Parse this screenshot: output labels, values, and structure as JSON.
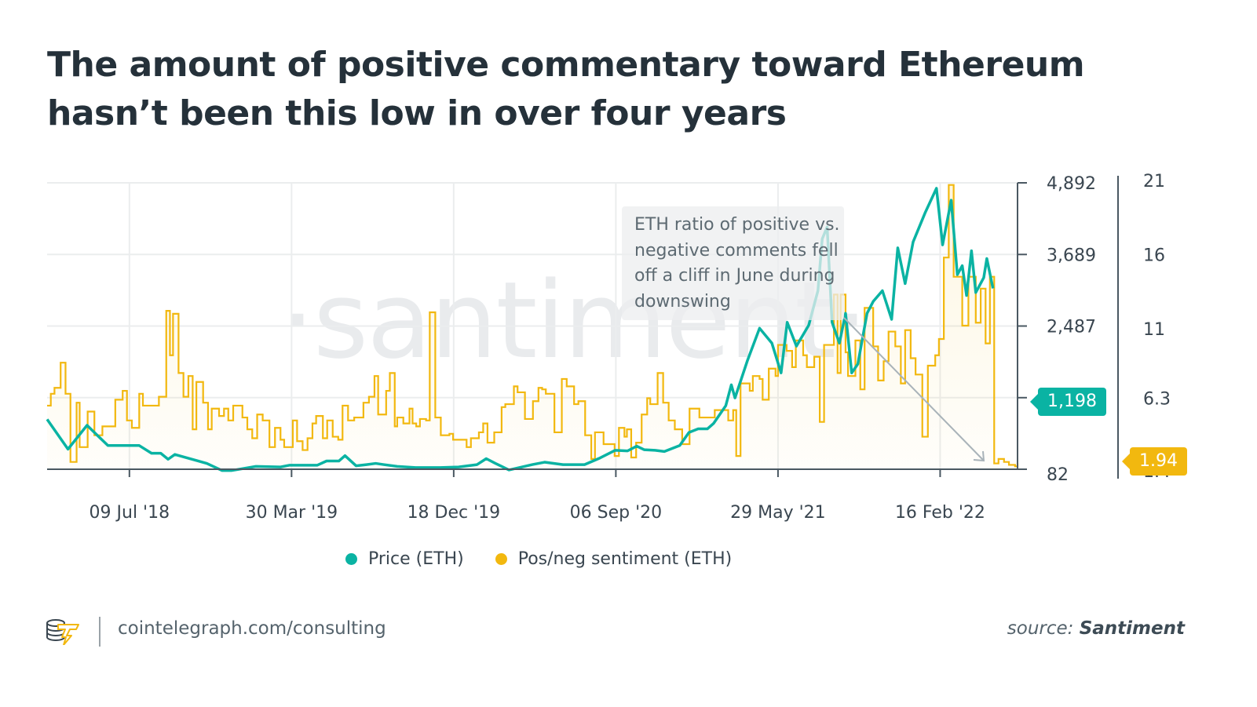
{
  "title": "The amount of positive commentary toward Ethereum hasn’t been this low in over four years",
  "watermark": "·santiment·",
  "annotation": "ETH ratio of positive vs. negative comments fell off a cliff in June during downswing",
  "footer": {
    "url": "cointelegraph.com/consulting",
    "source_label": "source:",
    "source_name": "Santiment"
  },
  "colors": {
    "price": "#0ab3a3",
    "sentiment": "#f2b80f",
    "axis": "#4a5862",
    "grid": "#ebedee",
    "text": "#3a4650"
  },
  "chart_data": {
    "type": "line",
    "title": "The amount of positive commentary toward Ethereum hasn’t been this low in over four years",
    "x_tick_labels": [
      "09 Jul '18",
      "30 Mar '19",
      "18 Dec '19",
      "06 Sep '20",
      "29 May '21",
      "16 Feb '22"
    ],
    "x_tick_days": [
      134,
      398,
      662,
      926,
      1190,
      1454
    ],
    "x_range_days": [
      0,
      1580
    ],
    "y_left": {
      "label": "Price (ETH)",
      "ticks": [
        "4,892",
        "3,689",
        "2,487",
        "82"
      ],
      "tick_values": [
        4892,
        3689,
        2487,
        1284,
        82
      ],
      "range": [
        82,
        4892
      ]
    },
    "y_right": {
      "label": "Pos/neg sentiment (ETH)",
      "ticks": [
        "21",
        "16",
        "11",
        "6.3",
        "1.4"
      ],
      "tick_values": [
        21,
        16,
        11,
        6.3,
        1.4
      ],
      "range": [
        1.4,
        21
      ]
    },
    "current_values": {
      "price": "1,198",
      "sentiment": "1.94"
    },
    "legend": [
      {
        "name": "Price (ETH)",
        "color": "#0ab3a3"
      },
      {
        "name": "Pos/neg sentiment (ETH)",
        "color": "#f2b80f"
      }
    ],
    "legend_position": "bottom",
    "grid": true,
    "series": [
      {
        "name": "Price (ETH)",
        "style": "line",
        "axis": "left",
        "points": [
          [
            0,
            920
          ],
          [
            34,
            420
          ],
          [
            65,
            820
          ],
          [
            99,
            480
          ],
          [
            150,
            480
          ],
          [
            170,
            350
          ],
          [
            185,
            350
          ],
          [
            197,
            250
          ],
          [
            208,
            330
          ],
          [
            260,
            180
          ],
          [
            285,
            60
          ],
          [
            300,
            60
          ],
          [
            340,
            130
          ],
          [
            380,
            120
          ],
          [
            395,
            150
          ],
          [
            440,
            150
          ],
          [
            455,
            220
          ],
          [
            475,
            220
          ],
          [
            485,
            310
          ],
          [
            503,
            140
          ],
          [
            520,
            160
          ],
          [
            535,
            180
          ],
          [
            548,
            160
          ],
          [
            570,
            130
          ],
          [
            600,
            110
          ],
          [
            640,
            110
          ],
          [
            670,
            120
          ],
          [
            700,
            160
          ],
          [
            715,
            260
          ],
          [
            730,
            180
          ],
          [
            752,
            70
          ],
          [
            790,
            160
          ],
          [
            810,
            200
          ],
          [
            840,
            160
          ],
          [
            875,
            160
          ],
          [
            900,
            270
          ],
          [
            925,
            400
          ],
          [
            945,
            390
          ],
          [
            960,
            470
          ],
          [
            972,
            410
          ],
          [
            990,
            400
          ],
          [
            1005,
            380
          ],
          [
            1030,
            480
          ],
          [
            1045,
            700
          ],
          [
            1060,
            760
          ],
          [
            1075,
            760
          ],
          [
            1085,
            850
          ],
          [
            1095,
            1000
          ],
          [
            1105,
            1150
          ],
          [
            1114,
            1500
          ],
          [
            1120,
            1280
          ],
          [
            1140,
            1900
          ],
          [
            1160,
            2450
          ],
          [
            1180,
            2200
          ],
          [
            1195,
            1700
          ],
          [
            1205,
            2550
          ],
          [
            1220,
            2150
          ],
          [
            1240,
            2500
          ],
          [
            1255,
            3080
          ],
          [
            1262,
            3950
          ],
          [
            1270,
            4150
          ],
          [
            1278,
            2550
          ],
          [
            1290,
            2200
          ],
          [
            1300,
            2700
          ],
          [
            1310,
            1700
          ],
          [
            1320,
            1850
          ],
          [
            1335,
            2700
          ],
          [
            1345,
            2900
          ],
          [
            1360,
            3080
          ],
          [
            1375,
            2600
          ],
          [
            1385,
            3800
          ],
          [
            1397,
            3200
          ],
          [
            1410,
            3900
          ],
          [
            1430,
            4400
          ],
          [
            1448,
            4800
          ],
          [
            1458,
            3850
          ],
          [
            1472,
            4600
          ],
          [
            1482,
            3350
          ],
          [
            1490,
            3500
          ],
          [
            1497,
            3000
          ],
          [
            1505,
            3750
          ],
          [
            1512,
            3050
          ],
          [
            1525,
            3300
          ],
          [
            1530,
            3620
          ],
          [
            1540,
            3120
          ]
        ]
      },
      {
        "name": "Pos/neg sentiment (ETH)",
        "style": "step",
        "axis": "right",
        "points": [
          [
            0,
            5.8
          ],
          [
            6,
            6.6
          ],
          [
            12,
            7.0
          ],
          [
            22,
            8.7
          ],
          [
            30,
            6.6
          ],
          [
            38,
            2.0
          ],
          [
            48,
            6.0
          ],
          [
            53,
            3.0
          ],
          [
            66,
            5.4
          ],
          [
            77,
            3.8
          ],
          [
            90,
            4.4
          ],
          [
            103,
            4.4
          ],
          [
            111,
            6.2
          ],
          [
            123,
            6.8
          ],
          [
            130,
            4.8
          ],
          [
            138,
            4.3
          ],
          [
            147,
            4.3
          ],
          [
            150,
            6.6
          ],
          [
            156,
            5.8
          ],
          [
            170,
            5.8
          ],
          [
            182,
            6.4
          ],
          [
            194,
            12.2
          ],
          [
            200,
            9.2
          ],
          [
            205,
            12.0
          ],
          [
            214,
            8.0
          ],
          [
            222,
            6.4
          ],
          [
            230,
            7.8
          ],
          [
            237,
            4.2
          ],
          [
            243,
            7.4
          ],
          [
            254,
            6.0
          ],
          [
            262,
            4.2
          ],
          [
            268,
            5.6
          ],
          [
            275,
            5.6
          ],
          [
            280,
            5.1
          ],
          [
            288,
            5.6
          ],
          [
            295,
            4.8
          ],
          [
            303,
            5.8
          ],
          [
            311,
            5.8
          ],
          [
            318,
            5.0
          ],
          [
            326,
            4.2
          ],
          [
            334,
            3.6
          ],
          [
            342,
            5.2
          ],
          [
            351,
            4.8
          ],
          [
            362,
            3.0
          ],
          [
            371,
            4.3
          ],
          [
            380,
            3.5
          ],
          [
            386,
            3.0
          ],
          [
            400,
            4.8
          ],
          [
            407,
            3.4
          ],
          [
            416,
            2.8
          ],
          [
            424,
            3.6
          ],
          [
            432,
            4.6
          ],
          [
            438,
            5.1
          ],
          [
            449,
            3.6
          ],
          [
            456,
            4.8
          ],
          [
            465,
            3.7
          ],
          [
            474,
            3.5
          ],
          [
            481,
            5.8
          ],
          [
            490,
            4.8
          ],
          [
            500,
            5.0
          ],
          [
            507,
            5.0
          ],
          [
            515,
            6.0
          ],
          [
            524,
            6.4
          ],
          [
            533,
            7.8
          ],
          [
            539,
            5.2
          ],
          [
            552,
            6.8
          ],
          [
            558,
            8.0
          ],
          [
            566,
            4.4
          ],
          [
            570,
            5.0
          ],
          [
            576,
            5.0
          ],
          [
            580,
            4.6
          ],
          [
            590,
            5.6
          ],
          [
            595,
            4.6
          ],
          [
            601,
            4.4
          ],
          [
            607,
            4.9
          ],
          [
            617,
            4.8
          ],
          [
            623,
            12.1
          ],
          [
            632,
            5.0
          ],
          [
            641,
            3.8
          ],
          [
            655,
            3.9
          ],
          [
            661,
            3.5
          ],
          [
            669,
            3.5
          ],
          [
            683,
            3.0
          ],
          [
            690,
            3.6
          ],
          [
            703,
            4.0
          ],
          [
            710,
            4.6
          ],
          [
            717,
            3.3
          ],
          [
            728,
            4.0
          ],
          [
            740,
            5.7
          ],
          [
            746,
            5.9
          ],
          [
            760,
            7.1
          ],
          [
            766,
            6.7
          ],
          [
            778,
            4.9
          ],
          [
            791,
            6.1
          ],
          [
            800,
            7.0
          ],
          [
            806,
            6.9
          ],
          [
            812,
            6.6
          ],
          [
            826,
            4.0
          ],
          [
            838,
            7.6
          ],
          [
            846,
            7.1
          ],
          [
            858,
            5.9
          ],
          [
            865,
            6.1
          ],
          [
            876,
            3.8
          ],
          [
            886,
            2.2
          ],
          [
            892,
            4.0
          ],
          [
            906,
            3.2
          ],
          [
            917,
            3.2
          ],
          [
            924,
            2.4
          ],
          [
            931,
            4.3
          ],
          [
            940,
            3.7
          ],
          [
            944,
            4.2
          ],
          [
            951,
            2.3
          ],
          [
            959,
            3.3
          ],
          [
            968,
            5.2
          ],
          [
            977,
            6.3
          ],
          [
            982,
            5.9
          ],
          [
            994,
            8.0
          ],
          [
            1003,
            6.0
          ],
          [
            1012,
            4.8
          ],
          [
            1022,
            4.2
          ],
          [
            1034,
            3.2
          ],
          [
            1046,
            5.6
          ],
          [
            1062,
            5.0
          ],
          [
            1072,
            5.0
          ],
          [
            1087,
            5.5
          ],
          [
            1100,
            5.5
          ],
          [
            1109,
            4.8
          ],
          [
            1117,
            5.5
          ],
          [
            1122,
            2.4
          ],
          [
            1129,
            7.3
          ],
          [
            1144,
            6.8
          ],
          [
            1149,
            7.8
          ],
          [
            1160,
            7.6
          ],
          [
            1165,
            6.2
          ],
          [
            1175,
            8.3
          ],
          [
            1186,
            7.8
          ],
          [
            1190,
            9.9
          ],
          [
            1204,
            9.5
          ],
          [
            1213,
            8.4
          ],
          [
            1219,
            10.2
          ],
          [
            1231,
            9.2
          ],
          [
            1237,
            8.4
          ],
          [
            1249,
            9.1
          ],
          [
            1258,
            4.7
          ],
          [
            1265,
            9.9
          ],
          [
            1281,
            13.3
          ],
          [
            1287,
            8.0
          ],
          [
            1292,
            13.3
          ],
          [
            1300,
            9.4
          ],
          [
            1304,
            7.8
          ],
          [
            1316,
            10.2
          ],
          [
            1324,
            6.9
          ],
          [
            1331,
            12.4
          ],
          [
            1345,
            9.8
          ],
          [
            1353,
            7.5
          ],
          [
            1362,
            8.8
          ],
          [
            1370,
            10.8
          ],
          [
            1381,
            9.8
          ],
          [
            1390,
            7.3
          ],
          [
            1397,
            10.9
          ],
          [
            1406,
            9.0
          ],
          [
            1414,
            7.9
          ],
          [
            1425,
            3.7
          ],
          [
            1434,
            8.5
          ],
          [
            1446,
            9.2
          ],
          [
            1452,
            10.3
          ],
          [
            1460,
            15.8
          ],
          [
            1468,
            20.7
          ],
          [
            1476,
            14.5
          ],
          [
            1490,
            11.2
          ],
          [
            1500,
            14.5
          ],
          [
            1512,
            11.4
          ],
          [
            1520,
            13.7
          ],
          [
            1528,
            10.0
          ],
          [
            1535,
            14.5
          ],
          [
            1542,
            1.9
          ],
          [
            1549,
            2.2
          ],
          [
            1558,
            2.0
          ],
          [
            1566,
            1.8
          ],
          [
            1576,
            1.7
          ],
          [
            1580,
            1.9
          ]
        ]
      }
    ]
  }
}
